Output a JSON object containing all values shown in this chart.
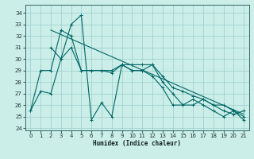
{
  "xlabel": "Humidex (Indice chaleur)",
  "bg_color": "#cbeee8",
  "grid_color": "#99cccc",
  "line_color": "#006666",
  "xlim": [
    -0.5,
    21.5
  ],
  "ylim": [
    23.8,
    34.7
  ],
  "yticks": [
    24,
    25,
    26,
    27,
    28,
    29,
    30,
    31,
    32,
    33,
    34
  ],
  "xticks": [
    0,
    1,
    2,
    3,
    4,
    5,
    6,
    7,
    8,
    9,
    10,
    11,
    12,
    13,
    14,
    15,
    16,
    17,
    18,
    19,
    20,
    21
  ],
  "s1_x": [
    0,
    1,
    2,
    3,
    4,
    5,
    6,
    7,
    8,
    9,
    10,
    11,
    12,
    13,
    14,
    15,
    16,
    17,
    18,
    19,
    20,
    21
  ],
  "s1_y": [
    25.5,
    27.2,
    27.0,
    30.0,
    33.0,
    33.8,
    24.7,
    26.2,
    25.0,
    29.5,
    29.5,
    29.5,
    29.5,
    28.5,
    27.5,
    27.2,
    26.8,
    26.5,
    26.0,
    25.5,
    25.2,
    25.5
  ],
  "s2_x": [
    0,
    1,
    2,
    3,
    4,
    5,
    6,
    7,
    8,
    9,
    10,
    11,
    12,
    13,
    14,
    15,
    16,
    17,
    18,
    19,
    20,
    21
  ],
  "s2_y": [
    25.5,
    29.0,
    29.0,
    32.5,
    32.0,
    29.0,
    29.0,
    29.0,
    29.0,
    29.5,
    29.0,
    29.0,
    28.5,
    27.5,
    26.0,
    26.0,
    26.5,
    26.0,
    25.5,
    25.0,
    25.5,
    24.7
  ],
  "s3_x": [
    2,
    3,
    4,
    5,
    6,
    7,
    8,
    9,
    10,
    11,
    12,
    13,
    14,
    15,
    16,
    17,
    18,
    19,
    20,
    21
  ],
  "s3_y": [
    31.0,
    30.0,
    31.0,
    29.0,
    29.0,
    29.0,
    28.8,
    29.5,
    29.0,
    29.0,
    29.5,
    28.0,
    27.0,
    26.0,
    26.0,
    26.5,
    26.0,
    26.0,
    25.5,
    25.0
  ],
  "trend_x": [
    2,
    21
  ],
  "trend_y": [
    32.5,
    25.2
  ]
}
